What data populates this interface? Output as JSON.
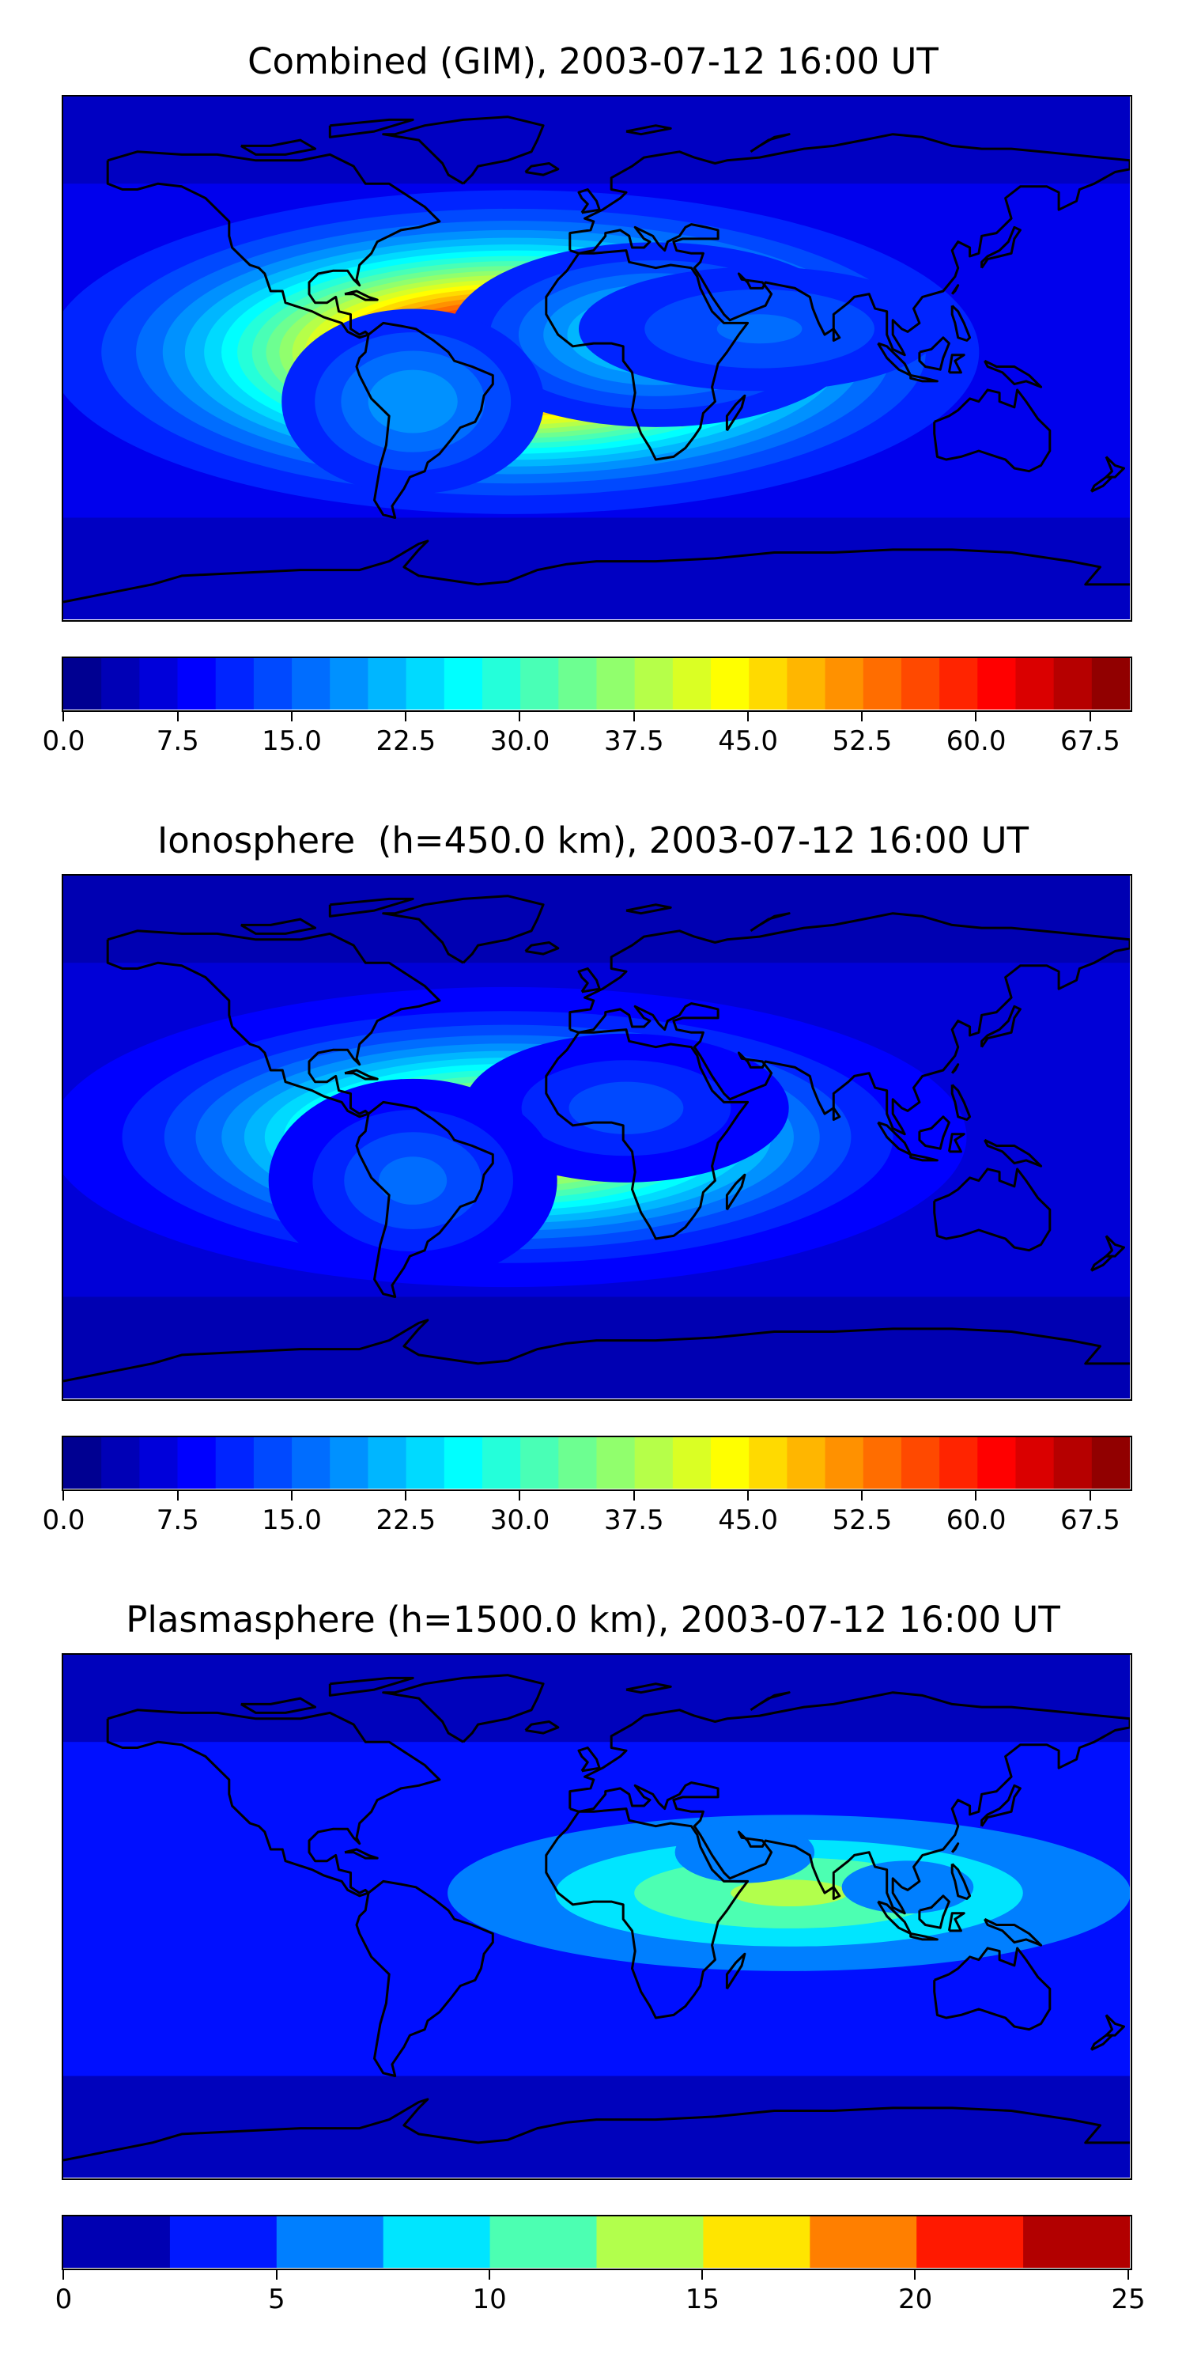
{
  "chart_data": [
    {
      "type": "heatmap",
      "title": "Combined (GIM), 2003-07-12 16:00 UT",
      "colorbar": {
        "min": 0,
        "max": 70,
        "step": 2.5,
        "ticks": [
          "0.0",
          "7.5",
          "15.0",
          "22.5",
          "30.0",
          "37.5",
          "45.0",
          "52.5",
          "60.0",
          "67.5"
        ],
        "tick_values": [
          0,
          7.5,
          15,
          22.5,
          30,
          37.5,
          45,
          52.5,
          60,
          67.5
        ]
      },
      "background_level": 7.5,
      "features": [
        {
          "lon": -28,
          "lat": 2,
          "peak": 62,
          "slon": 62,
          "slat": 22
        },
        {
          "lon": 20,
          "lat": 8,
          "peak": 18,
          "slon": 35,
          "slat": 16
        },
        {
          "lon": -62,
          "lat": -15,
          "peak": 12,
          "slon": 25,
          "slat": 18
        },
        {
          "lon": 55,
          "lat": 10,
          "peak": 8,
          "slon": 40,
          "slat": 14
        }
      ],
      "floor_level": 4
    },
    {
      "type": "heatmap",
      "title": "Ionosphere  (h=450.0 km), 2003-07-12 16:00 UT",
      "colorbar": {
        "min": 0,
        "max": 70,
        "step": 2.5,
        "ticks": [
          "0.0",
          "7.5",
          "15.0",
          "22.5",
          "30.0",
          "37.5",
          "45.0",
          "52.5",
          "60.0",
          "67.5"
        ],
        "tick_values": [
          0,
          7.5,
          15,
          22.5,
          30,
          37.5,
          45,
          52.5,
          60,
          67.5
        ]
      },
      "background_level": 6,
      "features": [
        {
          "lon": -30,
          "lat": 0,
          "peak": 42,
          "slon": 60,
          "slat": 20
        },
        {
          "lon": 10,
          "lat": 10,
          "peak": 8,
          "slon": 30,
          "slat": 14
        },
        {
          "lon": -62,
          "lat": -15,
          "peak": 10,
          "slon": 25,
          "slat": 18
        }
      ],
      "floor_level": 3
    },
    {
      "type": "heatmap",
      "title": "Plasmasphere (h=1500.0 km), 2003-07-12 16:00 UT",
      "colorbar": {
        "min": 0,
        "max": 25,
        "step": 2.5,
        "ticks": [
          "0",
          "5",
          "10",
          "15",
          "20",
          "25"
        ],
        "tick_values": [
          0,
          5,
          10,
          15,
          20,
          25
        ]
      },
      "background_level": 3.5,
      "features": [
        {
          "lon": 65,
          "lat": 8,
          "peak": 9.5,
          "slon": 60,
          "slat": 14
        },
        {
          "lon": 50,
          "lat": 22,
          "peak": 3,
          "slon": 20,
          "slat": 9
        },
        {
          "lon": 105,
          "lat": 10,
          "peak": 2.5,
          "slon": 22,
          "slat": 9
        }
      ],
      "floor_level": 1.2
    }
  ],
  "colors": {
    "jet_stops": [
      "#00007f",
      "#0000ff",
      "#007fff",
      "#00ffff",
      "#7fff7f",
      "#ffff00",
      "#ff7f00",
      "#ff0000",
      "#7f0000"
    ],
    "coastline": "#000000"
  }
}
